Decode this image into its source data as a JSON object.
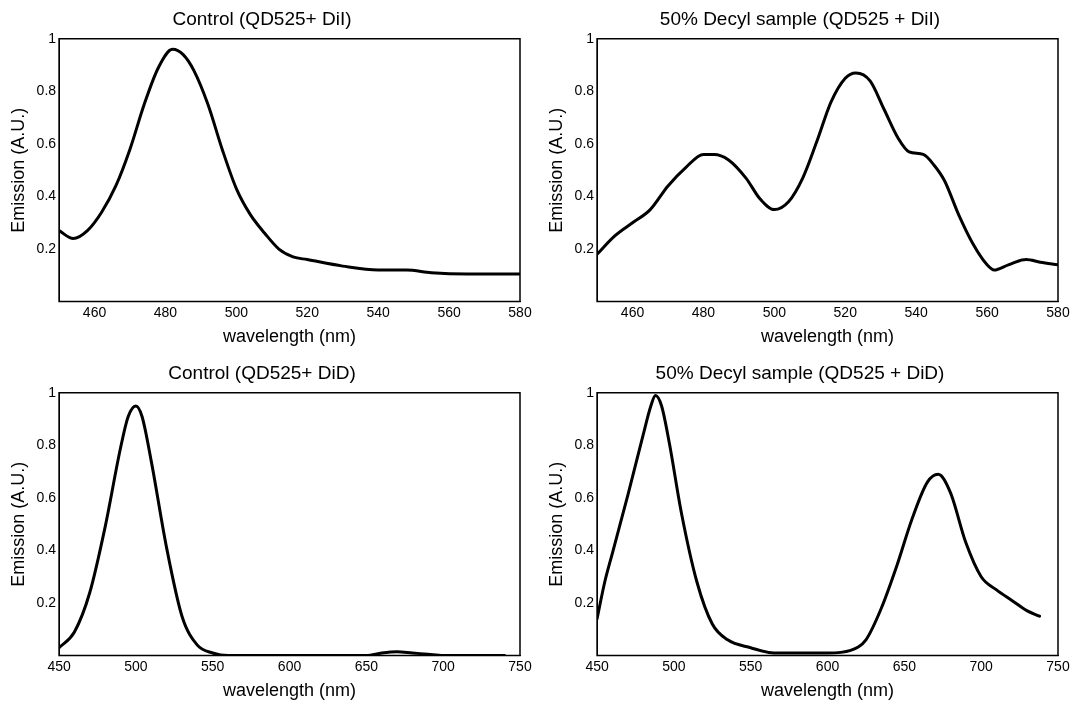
{
  "chart_data": [
    {
      "type": "line",
      "title": "Control (QD525+ DiI)",
      "xlabel": "wavelength (nm)",
      "ylabel": "Emission (A.U.)",
      "xlim": [
        450,
        580
      ],
      "xticks": [
        460,
        480,
        500,
        520,
        540,
        560,
        580
      ],
      "ylim": [
        0,
        1
      ],
      "yticks": [
        0.2,
        0.4,
        0.6,
        0.8,
        1
      ],
      "marker": "none",
      "line_style": "solid",
      "x": [
        450,
        454,
        458,
        462,
        466,
        470,
        474,
        478,
        482,
        485,
        488,
        492,
        496,
        500,
        504,
        508,
        512,
        516,
        520,
        530,
        540,
        548,
        555,
        565,
        580
      ],
      "series": [
        {
          "color": "#000000",
          "values": [
            0.27,
            0.24,
            0.27,
            0.34,
            0.44,
            0.58,
            0.75,
            0.89,
            0.96,
            0.94,
            0.88,
            0.75,
            0.58,
            0.43,
            0.33,
            0.26,
            0.2,
            0.17,
            0.16,
            0.135,
            0.12,
            0.12,
            0.11,
            0.105,
            0.105
          ]
        }
      ]
    },
    {
      "type": "line",
      "title": "50% Decyl sample (QD525 + DiI)",
      "xlabel": "wavelength (nm)",
      "ylabel": "Emission (A.U.)",
      "xlim": [
        450,
        580
      ],
      "xticks": [
        460,
        480,
        500,
        520,
        540,
        560,
        580
      ],
      "ylim": [
        0,
        1
      ],
      "yticks": [
        0.2,
        0.4,
        0.6,
        0.8,
        1
      ],
      "marker": "none",
      "line_style": "solid",
      "x": [
        450,
        455,
        460,
        465,
        470,
        475,
        480,
        483,
        487,
        492,
        496,
        500,
        504,
        508,
        512,
        516,
        520,
        523,
        527,
        531,
        535,
        538,
        542,
        545,
        548,
        552,
        556,
        560,
        562,
        566,
        571,
        575,
        580
      ],
      "series": [
        {
          "color": "#000000",
          "values": [
            0.18,
            0.25,
            0.3,
            0.35,
            0.44,
            0.51,
            0.56,
            0.56,
            0.54,
            0.47,
            0.39,
            0.35,
            0.38,
            0.47,
            0.61,
            0.76,
            0.85,
            0.87,
            0.84,
            0.73,
            0.62,
            0.57,
            0.56,
            0.52,
            0.46,
            0.33,
            0.22,
            0.14,
            0.12,
            0.14,
            0.16,
            0.15,
            0.14
          ]
        }
      ]
    },
    {
      "type": "line",
      "title": "Control (QD525+ DiD)",
      "xlabel": "wavelength (nm)",
      "ylabel": "Emission (A.U.)",
      "xlim": [
        450,
        750
      ],
      "xticks": [
        450,
        500,
        550,
        600,
        650,
        700,
        750
      ],
      "ylim": [
        0,
        1
      ],
      "yticks": [
        0.2,
        0.4,
        0.6,
        0.8,
        1
      ],
      "marker": "none",
      "line_style": "solid",
      "x": [
        450,
        460,
        470,
        480,
        490,
        495,
        500,
        504,
        510,
        520,
        530,
        540,
        550,
        560,
        600,
        650,
        660,
        670,
        680,
        690,
        700,
        740
      ],
      "series": [
        {
          "color": "#000000",
          "values": [
            0.03,
            0.09,
            0.24,
            0.49,
            0.79,
            0.91,
            0.95,
            0.91,
            0.74,
            0.41,
            0.15,
            0.04,
            0.01,
            0,
            0,
            0,
            0.01,
            0.015,
            0.01,
            0.005,
            0,
            0
          ]
        }
      ]
    },
    {
      "type": "line",
      "title": "50% Decyl sample (QD525 + DiD)",
      "xlabel": "wavelength (nm)",
      "ylabel": "Emission (A.U.)",
      "xlim": [
        450,
        750
      ],
      "xticks": [
        450,
        500,
        550,
        600,
        650,
        700,
        750
      ],
      "ylim": [
        0,
        1
      ],
      "yticks": [
        0.2,
        0.4,
        0.6,
        0.8,
        1
      ],
      "marker": "none",
      "line_style": "solid",
      "x": [
        450,
        455,
        460,
        470,
        480,
        485,
        488,
        492,
        497,
        505,
        515,
        525,
        535,
        550,
        565,
        580,
        600,
        615,
        625,
        635,
        645,
        655,
        665,
        672,
        680,
        690,
        700,
        710,
        720,
        730,
        738
      ],
      "series": [
        {
          "color": "#000000",
          "values": [
            0.14,
            0.28,
            0.39,
            0.61,
            0.84,
            0.95,
            0.99,
            0.95,
            0.81,
            0.54,
            0.28,
            0.12,
            0.06,
            0.03,
            0.01,
            0.01,
            0.01,
            0.02,
            0.06,
            0.18,
            0.34,
            0.52,
            0.66,
            0.69,
            0.62,
            0.43,
            0.3,
            0.25,
            0.21,
            0.17,
            0.15
          ]
        }
      ]
    }
  ]
}
